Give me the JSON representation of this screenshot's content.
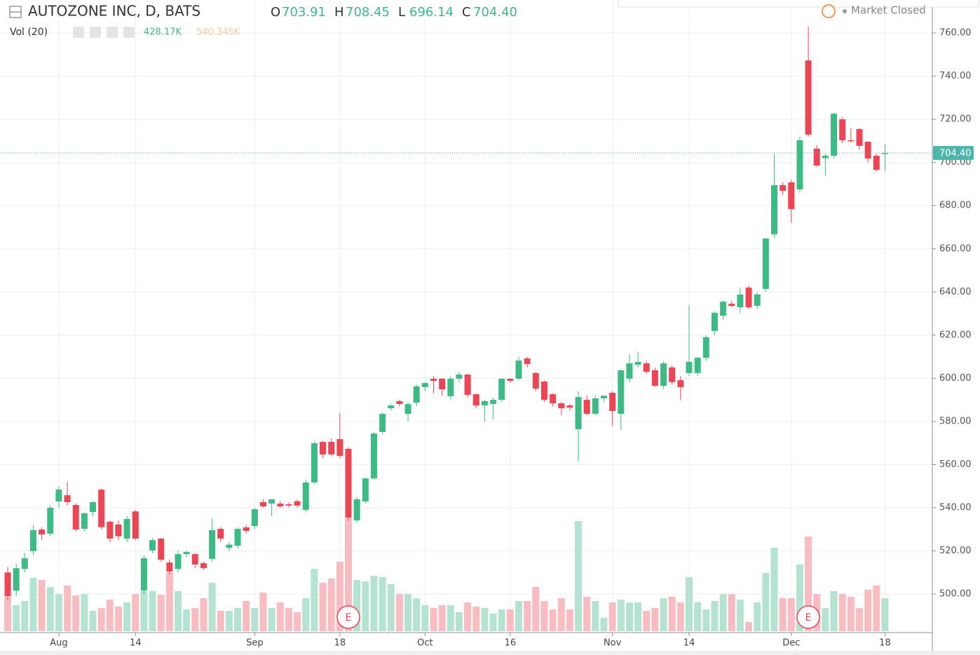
{
  "chart_data": {
    "type": "candlestick",
    "title": "AUTOZONE INC, D, BATS",
    "header": {
      "letters": [
        "O",
        "H",
        "L",
        "C"
      ],
      "values": [
        "703.91",
        "708.45",
        "696.14",
        "704.40"
      ]
    },
    "volume_title": "Vol (20)",
    "volume_labels": [
      "428.17K",
      "540.345K"
    ],
    "status": "Market Closed",
    "last_price_label": "704.40",
    "up_color": "#3dbb84",
    "down_color": "#ef4454",
    "up_volume_color": "#b5e3d2",
    "down_volume_color": "#f8bcc1",
    "ylim": [
      482.8,
      775.3
    ],
    "yticks": [
      {
        "value": 500,
        "label": "500.00"
      },
      {
        "value": 520,
        "label": "520.00"
      },
      {
        "value": 540,
        "label": "540.00"
      },
      {
        "value": 560,
        "label": "560.00"
      },
      {
        "value": 580,
        "label": "580.00"
      },
      {
        "value": 600,
        "label": "600.00"
      },
      {
        "value": 620,
        "label": "620.00"
      },
      {
        "value": 640,
        "label": "640.00"
      },
      {
        "value": 660,
        "label": "660.00"
      },
      {
        "value": 680,
        "label": "680.00"
      },
      {
        "value": 700,
        "label": "700.00"
      },
      {
        "value": 720,
        "label": "720.00"
      },
      {
        "value": 740,
        "label": "740.00"
      },
      {
        "value": 760,
        "label": "760.00"
      }
    ],
    "volume_lim": [
      0,
      8190
    ],
    "grid": true,
    "categories": [
      null,
      null,
      null,
      null,
      null,
      null,
      "Aug",
      null,
      null,
      null,
      null,
      null,
      null,
      null,
      null,
      "14",
      null,
      null,
      null,
      null,
      null,
      null,
      null,
      null,
      null,
      null,
      null,
      null,
      null,
      "Sep",
      null,
      null,
      null,
      null,
      null,
      null,
      null,
      null,
      null,
      "18",
      null,
      null,
      null,
      null,
      null,
      null,
      null,
      null,
      null,
      "Oct",
      null,
      null,
      null,
      null,
      null,
      null,
      null,
      null,
      null,
      "16",
      null,
      null,
      null,
      null,
      null,
      null,
      null,
      null,
      null,
      null,
      null,
      "Nov",
      null,
      null,
      null,
      null,
      null,
      null,
      null,
      null,
      "14",
      null,
      null,
      null,
      null,
      null,
      null,
      null,
      null,
      null,
      null,
      null,
      "Dec",
      null,
      null,
      null,
      null,
      null,
      null,
      null,
      null,
      null,
      null,
      "18"
    ],
    "ohlc": [
      [
        510,
        512.5,
        497,
        499
      ],
      [
        501.6,
        514,
        499,
        512
      ],
      [
        511.6,
        519,
        510,
        516.6
      ],
      [
        519.9,
        532,
        518,
        529.6
      ],
      [
        529.9,
        531,
        525,
        527.6
      ],
      [
        528,
        541,
        527,
        540
      ],
      [
        542.9,
        550,
        540,
        548.4
      ],
      [
        545.8,
        552,
        541,
        542.6
      ],
      [
        541.3,
        542,
        529,
        529.9
      ],
      [
        530.2,
        538,
        529,
        537.4
      ],
      [
        538,
        543,
        536,
        542.6
      ],
      [
        548.4,
        549,
        530,
        531
      ],
      [
        533.5,
        534,
        524,
        525.7
      ],
      [
        532.2,
        534,
        525,
        526.8
      ],
      [
        525.7,
        536,
        524,
        534.8
      ],
      [
        538.3,
        539,
        525,
        525.7
      ],
      [
        501.6,
        518,
        500,
        516.6
      ],
      [
        520.2,
        526,
        519,
        525
      ],
      [
        525.7,
        526,
        515,
        515.9
      ],
      [
        514.6,
        516,
        509,
        510.4
      ],
      [
        511.6,
        520,
        510,
        518.5
      ],
      [
        518.5,
        520,
        517,
        519.5
      ],
      [
        518.5,
        519,
        512,
        513.7
      ],
      [
        514.3,
        515,
        511,
        512
      ],
      [
        516.3,
        535,
        515,
        529.6
      ],
      [
        530.2,
        531,
        524,
        525.7
      ],
      [
        521.4,
        524,
        520,
        522.9
      ],
      [
        522.4,
        531,
        521,
        530.2
      ],
      [
        530.9,
        532,
        528,
        529.3
      ],
      [
        531.5,
        540,
        530,
        539.3
      ],
      [
        542.6,
        544,
        540,
        540.6
      ],
      [
        541.9,
        544,
        536,
        543.9
      ],
      [
        541.9,
        543,
        540,
        540.6
      ],
      [
        541.6,
        542.5,
        540,
        541
      ],
      [
        543,
        544,
        540,
        541
      ],
      [
        539,
        553,
        538,
        551.7
      ],
      [
        551.7,
        571,
        551,
        569.9
      ],
      [
        570.5,
        571,
        563,
        564.7
      ],
      [
        570.5,
        572,
        564,
        564.7
      ],
      [
        571.8,
        584,
        563,
        564
      ],
      [
        567.3,
        568,
        534,
        535.4
      ],
      [
        534.1,
        545,
        533,
        543.9
      ],
      [
        542.9,
        554,
        542,
        553.6
      ],
      [
        553.6,
        575,
        553,
        574.4
      ],
      [
        575.1,
        584,
        574,
        583.5
      ],
      [
        586.1,
        588,
        585,
        587.4
      ],
      [
        589.4,
        590,
        587,
        588.1
      ],
      [
        583.5,
        589,
        580,
        588
      ],
      [
        588.7,
        597,
        587,
        596.2
      ],
      [
        595.9,
        598,
        594,
        597.8
      ],
      [
        599.8,
        601,
        593,
        598.8
      ],
      [
        599.8,
        600,
        592,
        594.9
      ],
      [
        591.7,
        601,
        590,
        599.8
      ],
      [
        599.8,
        603,
        598,
        601.7
      ],
      [
        601.7,
        602,
        591,
        592.3
      ],
      [
        592.6,
        593,
        586,
        587.4
      ],
      [
        587.4,
        590,
        580,
        589.4
      ],
      [
        588.1,
        591,
        581,
        590
      ],
      [
        590,
        600,
        589,
        599.8
      ],
      [
        599.8,
        600,
        598,
        598.8
      ],
      [
        599.8,
        610,
        599,
        608.2
      ],
      [
        609.2,
        610,
        605,
        606.6
      ],
      [
        602.4,
        603,
        594,
        595.2
      ],
      [
        598.5,
        599,
        589,
        590
      ],
      [
        592.6,
        593,
        587,
        588.4
      ],
      [
        588.4,
        589,
        583,
        586.1
      ],
      [
        587.4,
        588,
        585,
        586.4
      ],
      [
        576.4,
        594,
        561.5,
        591.3
      ],
      [
        590,
        592,
        583,
        583.5
      ],
      [
        583.5,
        592,
        583,
        590.7
      ],
      [
        590.7,
        592,
        589,
        591.9
      ],
      [
        593.3,
        594,
        578,
        584.8
      ],
      [
        583.5,
        604,
        576,
        603.7
      ],
      [
        599.8,
        611,
        598,
        606.9
      ],
      [
        606.3,
        612,
        605,
        607.6
      ],
      [
        606.9,
        608,
        602,
        603
      ],
      [
        603.7,
        605,
        596,
        596.5
      ],
      [
        596.5,
        608,
        595,
        606.9
      ],
      [
        605,
        606,
        597,
        598.2
      ],
      [
        599.1,
        601,
        590,
        595.9
      ],
      [
        602.4,
        634,
        601,
        607.6
      ],
      [
        602.4,
        610,
        601,
        609.5
      ],
      [
        609.5,
        620,
        608,
        619
      ],
      [
        621.9,
        631,
        620,
        630.3
      ],
      [
        629,
        636,
        627,
        635.5
      ],
      [
        634.5,
        636,
        633,
        633.5
      ],
      [
        632.9,
        642,
        630,
        638.8
      ],
      [
        642,
        643,
        632,
        632.9
      ],
      [
        633.6,
        640,
        632,
        638.8
      ],
      [
        641.4,
        665,
        640,
        664.8
      ],
      [
        666.7,
        704,
        665,
        689.5
      ],
      [
        689.5,
        691,
        685,
        686.9
      ],
      [
        690.8,
        692,
        672,
        678.4
      ],
      [
        687.5,
        712,
        686,
        710.3
      ],
      [
        747.3,
        763,
        712,
        712.9
      ],
      [
        706.4,
        708,
        698,
        698.6
      ],
      [
        702,
        704,
        694,
        703.1
      ],
      [
        703.1,
        723,
        702,
        722.6
      ],
      [
        720,
        721,
        709,
        710.3
      ],
      [
        710.3,
        716,
        709,
        709.8
      ],
      [
        715.5,
        716,
        706,
        707.7
      ],
      [
        709.6,
        710,
        700,
        701.8
      ],
      [
        703.1,
        704,
        696,
        696.6
      ],
      [
        703.91,
        708.45,
        696.14,
        704.4
      ]
    ],
    "volume": [
      446,
      337,
      391,
      692,
      664,
      573,
      482,
      592,
      464,
      482,
      264,
      300,
      410,
      319,
      373,
      482,
      519,
      519,
      473,
      764,
      519,
      282,
      300,
      428,
      628,
      264,
      264,
      300,
      391,
      300,
      501,
      300,
      373,
      300,
      246,
      428,
      810,
      628,
      683,
      901,
      1465,
      664,
      646,
      719,
      701,
      610,
      482,
      482,
      428,
      337,
      300,
      337,
      337,
      246,
      373,
      319,
      300,
      228,
      282,
      282,
      391,
      391,
      573,
      391,
      282,
      428,
      282,
      1429,
      446,
      391,
      173,
      373,
      410,
      373,
      373,
      264,
      300,
      428,
      446,
      373,
      701,
      373,
      282,
      391,
      482,
      482,
      410,
      118,
      373,
      755,
      1083,
      428,
      428,
      865,
      1229,
      482,
      300,
      519,
      482,
      446,
      300,
      537,
      592,
      428.17
    ]
  }
}
